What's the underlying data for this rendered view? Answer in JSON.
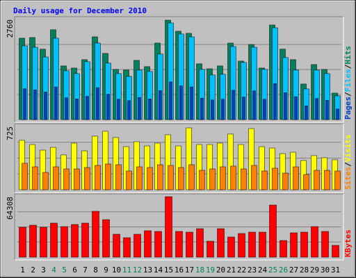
{
  "title": "Daily usage for December 2010",
  "separator": "/",
  "days": [
    "1",
    "2",
    "3",
    "4",
    "5",
    "6",
    "7",
    "8",
    "9",
    "10",
    "11",
    "12",
    "13",
    "14",
    "15",
    "16",
    "17",
    "18",
    "19",
    "20",
    "21",
    "22",
    "23",
    "24",
    "25",
    "26",
    "27",
    "28",
    "29",
    "30",
    "31"
  ],
  "weekend_days": [
    "4",
    "5",
    "11",
    "12",
    "18",
    "19",
    "25",
    "26"
  ],
  "weekday_color": "#000000",
  "weekend_color": "#00805c",
  "chart_data": [
    {
      "type": "bar",
      "ylim": [
        0,
        2760
      ],
      "yticks": [
        2760
      ],
      "series": [
        {
          "name": "Hits",
          "color": "#00805c",
          "values": [
            2243,
            2262,
            1940,
            2477,
            1478,
            1420,
            1651,
            2281,
            1823,
            1382,
            1363,
            1631,
            1459,
            2109,
            2741,
            2435,
            2378,
            1536,
            1401,
            1478,
            2109,
            1612,
            2070,
            1420,
            2607,
            1940,
            1651,
            979,
            1516,
            1382,
            729
          ]
        },
        {
          "name": "Files",
          "color": "#00c0ff",
          "values": [
            2032,
            1993,
            1726,
            2243,
            1344,
            1267,
            1593,
            2109,
            1555,
            1267,
            1190,
            1363,
            1325,
            1804,
            2664,
            2358,
            2281,
            1382,
            1228,
            1248,
            2013,
            1574,
            1993,
            1382,
            2530,
            1708,
            1363,
            845,
            1363,
            1267,
            653
          ]
        },
        {
          "name": "Pages",
          "color": "#0040c0",
          "values": [
            850,
            820,
            760,
            900,
            600,
            570,
            640,
            880,
            700,
            560,
            520,
            610,
            570,
            800,
            1040,
            930,
            900,
            590,
            540,
            560,
            810,
            620,
            790,
            560,
            990,
            740,
            630,
            380,
            580,
            530,
            290
          ]
        }
      ]
    },
    {
      "type": "bar",
      "ylim": [
        0,
        725
      ],
      "yticks": [
        725
      ],
      "series": [
        {
          "name": "Visits",
          "color": "#ffff00",
          "values": [
            566,
            518,
            454,
            486,
            399,
            534,
            446,
            614,
            670,
            598,
            494,
            550,
            502,
            534,
            630,
            502,
            709,
            518,
            518,
            534,
            638,
            518,
            701,
            494,
            478,
            414,
            430,
            335,
            391,
            367,
            343
          ]
        },
        {
          "name": "Sites",
          "color": "#ff8000",
          "values": [
            303,
            263,
            199,
            263,
            239,
            239,
            255,
            279,
            295,
            287,
            215,
            263,
            255,
            287,
            279,
            255,
            287,
            223,
            239,
            263,
            271,
            239,
            279,
            215,
            247,
            191,
            263,
            175,
            223,
            223,
            215
          ]
        }
      ]
    },
    {
      "type": "bar",
      "ylim": [
        0,
        64308
      ],
      "yticks": [
        64308
      ],
      "series": [
        {
          "name": "KBytes",
          "color": "#ff0000",
          "values": [
            31778,
            34000,
            31778,
            36211,
            32517,
            34734,
            36211,
            48775,
            39906,
            24388,
            20693,
            24388,
            28083,
            27344,
            64308,
            27344,
            26605,
            30300,
            16998,
            30300,
            21432,
            25127,
            26605,
            26605,
            55426,
            17738,
            25866,
            26605,
            32517,
            27344,
            12565
          ]
        }
      ]
    }
  ]
}
